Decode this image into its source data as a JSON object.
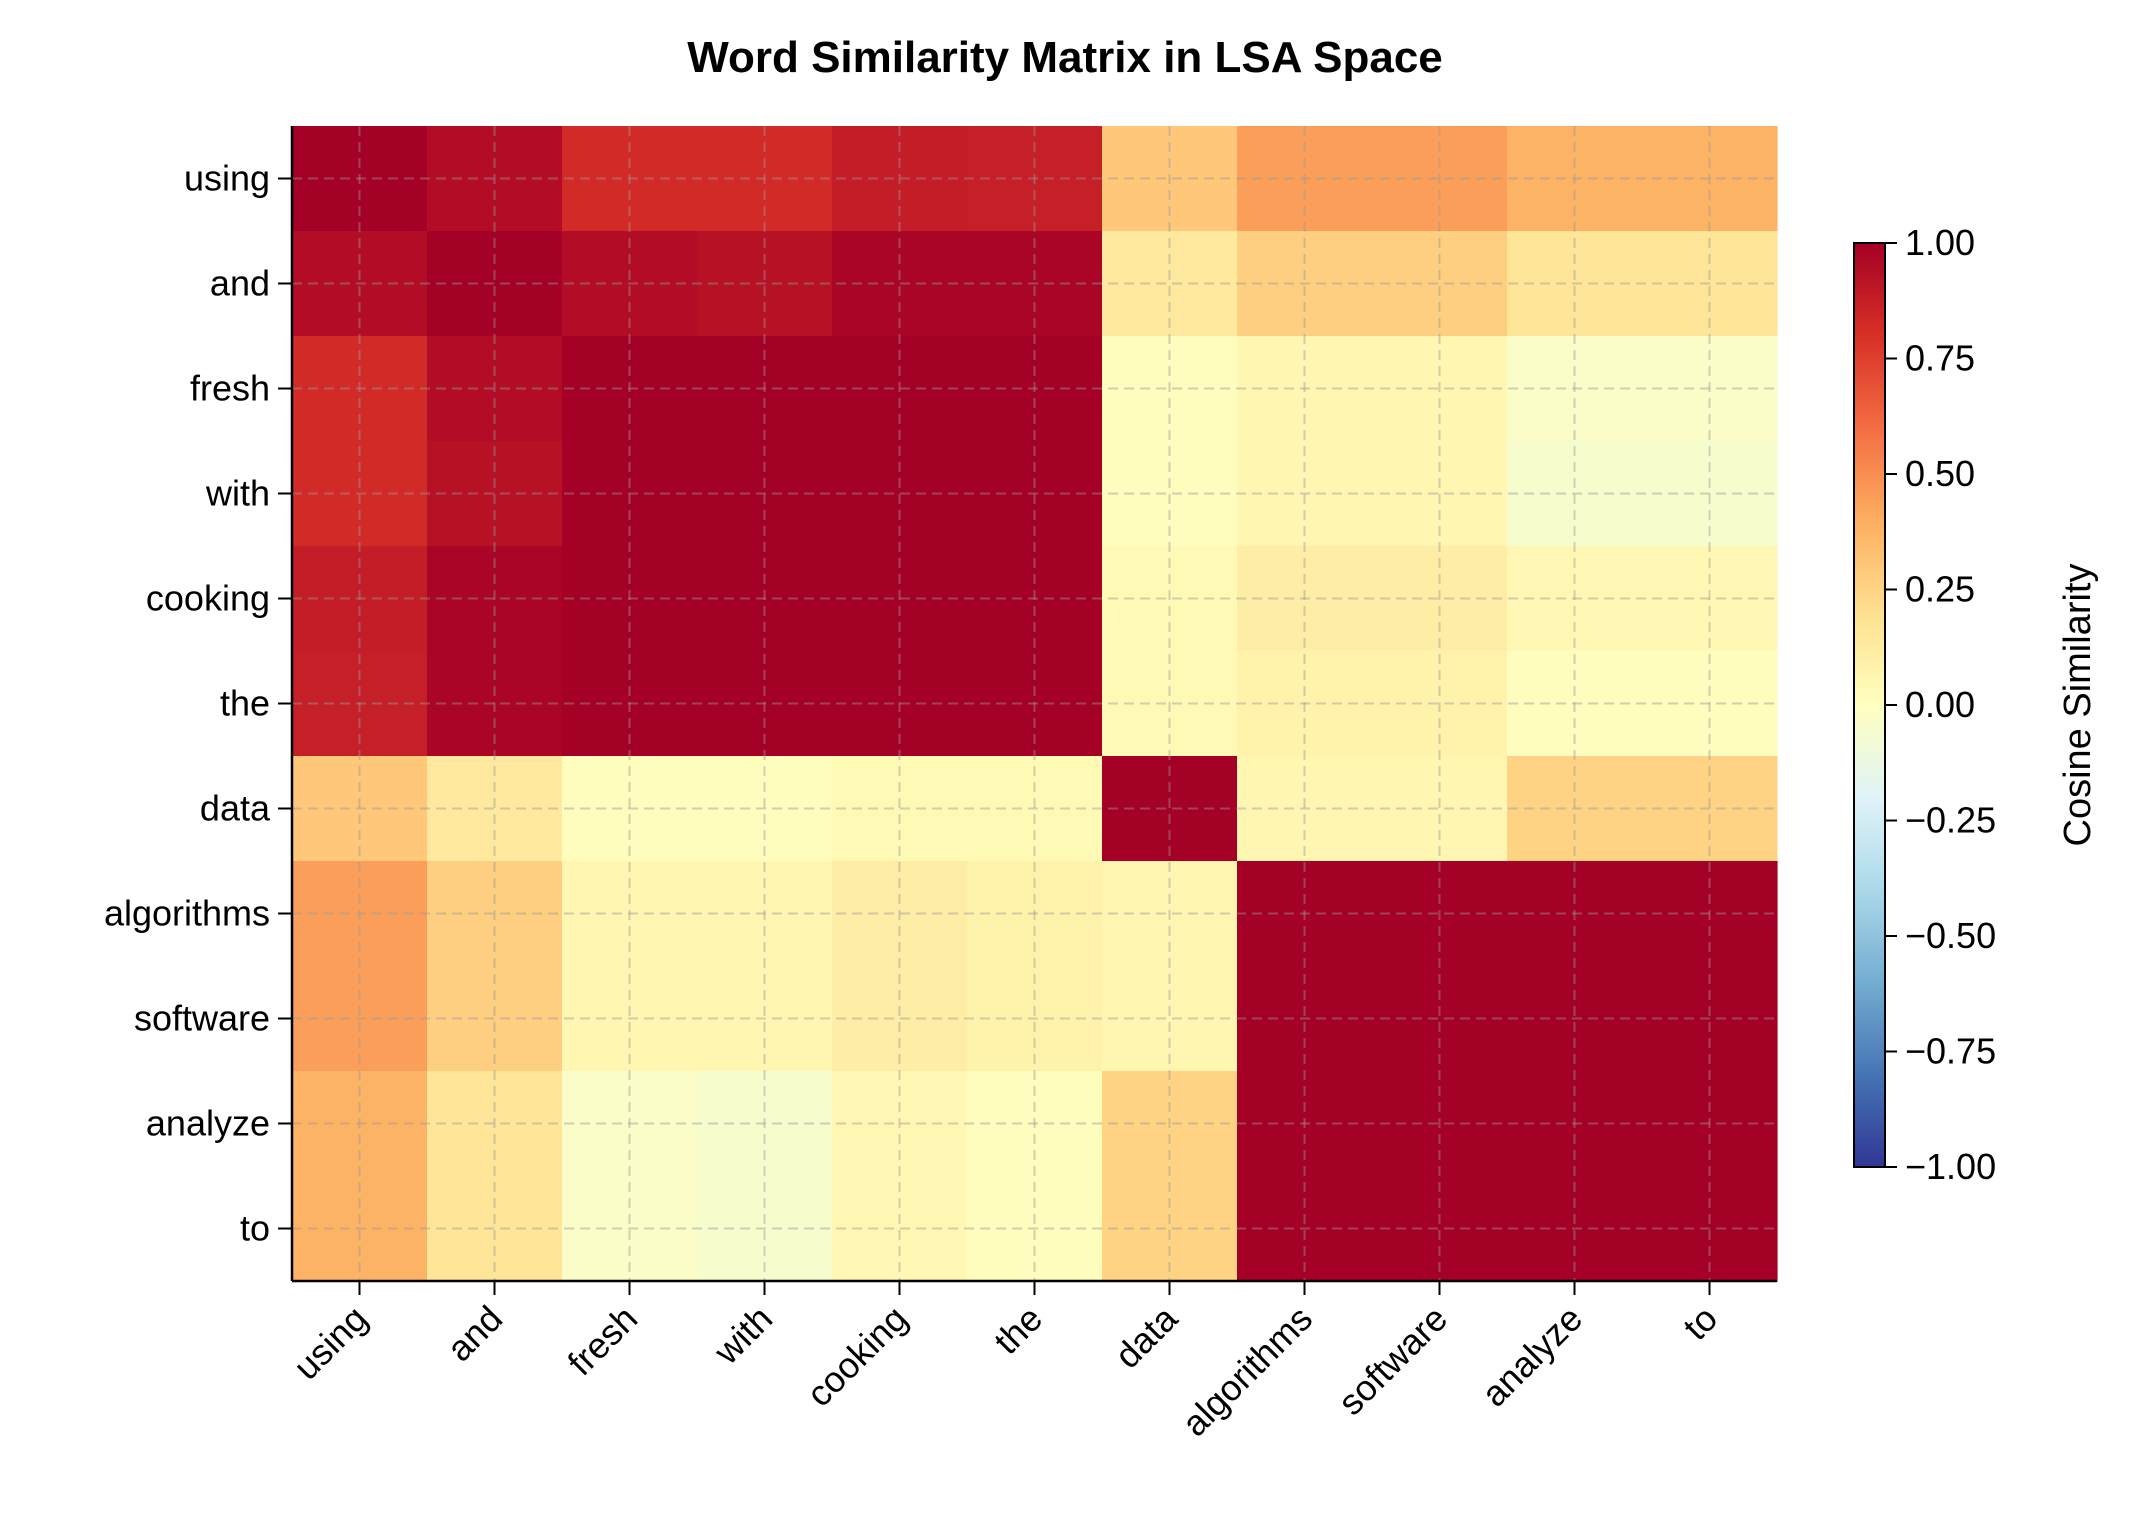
{
  "chart_data": {
    "type": "heatmap",
    "title": "Word Similarity Matrix in LSA Space",
    "xlabel": "",
    "ylabel": "",
    "colorbar_label": "Cosine Similarity",
    "colormap": "RdYlBu_r",
    "vmin": -1.0,
    "vmax": 1.0,
    "colorbar_ticks": [
      "1.00",
      "0.75",
      "0.50",
      "0.25",
      "0.00",
      "−0.25",
      "−0.50",
      "−0.75",
      "−1.00"
    ],
    "grid": true,
    "labels": [
      "using",
      "and",
      "fresh",
      "with",
      "cooking",
      "the",
      "data",
      "algorithms",
      "software",
      "analyze",
      "to"
    ],
    "values": [
      [
        1.0,
        0.95,
        0.82,
        0.82,
        0.88,
        0.87,
        0.3,
        0.45,
        0.45,
        0.38,
        0.38
      ],
      [
        0.95,
        1.0,
        0.95,
        0.93,
        0.98,
        0.98,
        0.14,
        0.27,
        0.27,
        0.17,
        0.17
      ],
      [
        0.82,
        0.95,
        1.0,
        1.0,
        1.0,
        1.0,
        0.01,
        0.06,
        0.06,
        -0.03,
        -0.03
      ],
      [
        0.82,
        0.93,
        1.0,
        1.0,
        1.0,
        1.0,
        0.01,
        0.06,
        0.06,
        -0.05,
        -0.05
      ],
      [
        0.88,
        0.98,
        1.0,
        1.0,
        1.0,
        1.0,
        0.04,
        0.11,
        0.11,
        0.05,
        0.05
      ],
      [
        0.87,
        0.98,
        1.0,
        1.0,
        1.0,
        1.0,
        0.04,
        0.08,
        0.08,
        0.01,
        0.01
      ],
      [
        0.3,
        0.14,
        0.01,
        0.01,
        0.04,
        0.04,
        1.0,
        0.06,
        0.06,
        0.25,
        0.25
      ],
      [
        0.45,
        0.27,
        0.06,
        0.06,
        0.11,
        0.08,
        0.06,
        1.0,
        1.0,
        1.0,
        1.0
      ],
      [
        0.45,
        0.27,
        0.06,
        0.06,
        0.11,
        0.08,
        0.06,
        1.0,
        1.0,
        1.0,
        1.0
      ],
      [
        0.38,
        0.17,
        -0.03,
        -0.05,
        0.05,
        0.01,
        0.25,
        1.0,
        1.0,
        1.0,
        1.0
      ],
      [
        0.38,
        0.17,
        -0.03,
        -0.05,
        0.05,
        0.01,
        0.25,
        1.0,
        1.0,
        1.0,
        1.0
      ]
    ]
  }
}
